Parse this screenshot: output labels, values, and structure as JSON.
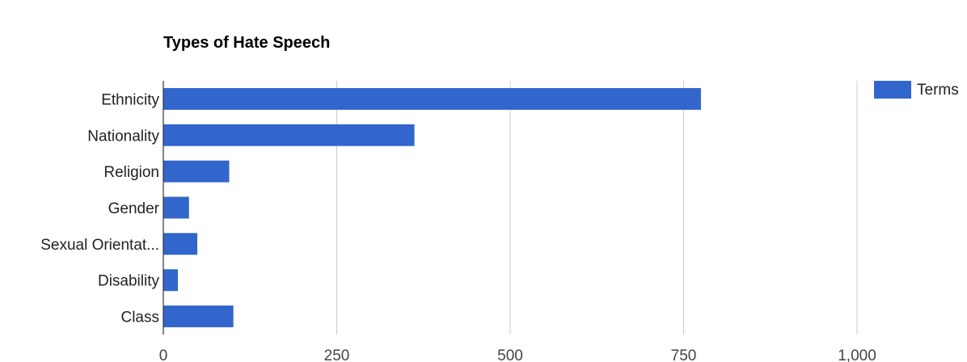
{
  "chart_data": {
    "type": "bar",
    "orientation": "horizontal",
    "title": "Types of Hate Speech",
    "categories": [
      "Ethnicity",
      "Nationality",
      "Religion",
      "Gender",
      "Sexual Orientat...",
      "Disability",
      "Class"
    ],
    "series": [
      {
        "name": "Terms",
        "values": [
          775,
          362,
          95,
          37,
          49,
          21,
          101
        ],
        "color": "#3366cc"
      }
    ],
    "xlim": [
      0,
      1000
    ],
    "xticks": [
      0,
      250,
      500,
      750,
      1000
    ],
    "xtick_labels": [
      "0",
      "250",
      "500",
      "750",
      "1,000"
    ],
    "grid": true,
    "legend_position": "top-right"
  }
}
